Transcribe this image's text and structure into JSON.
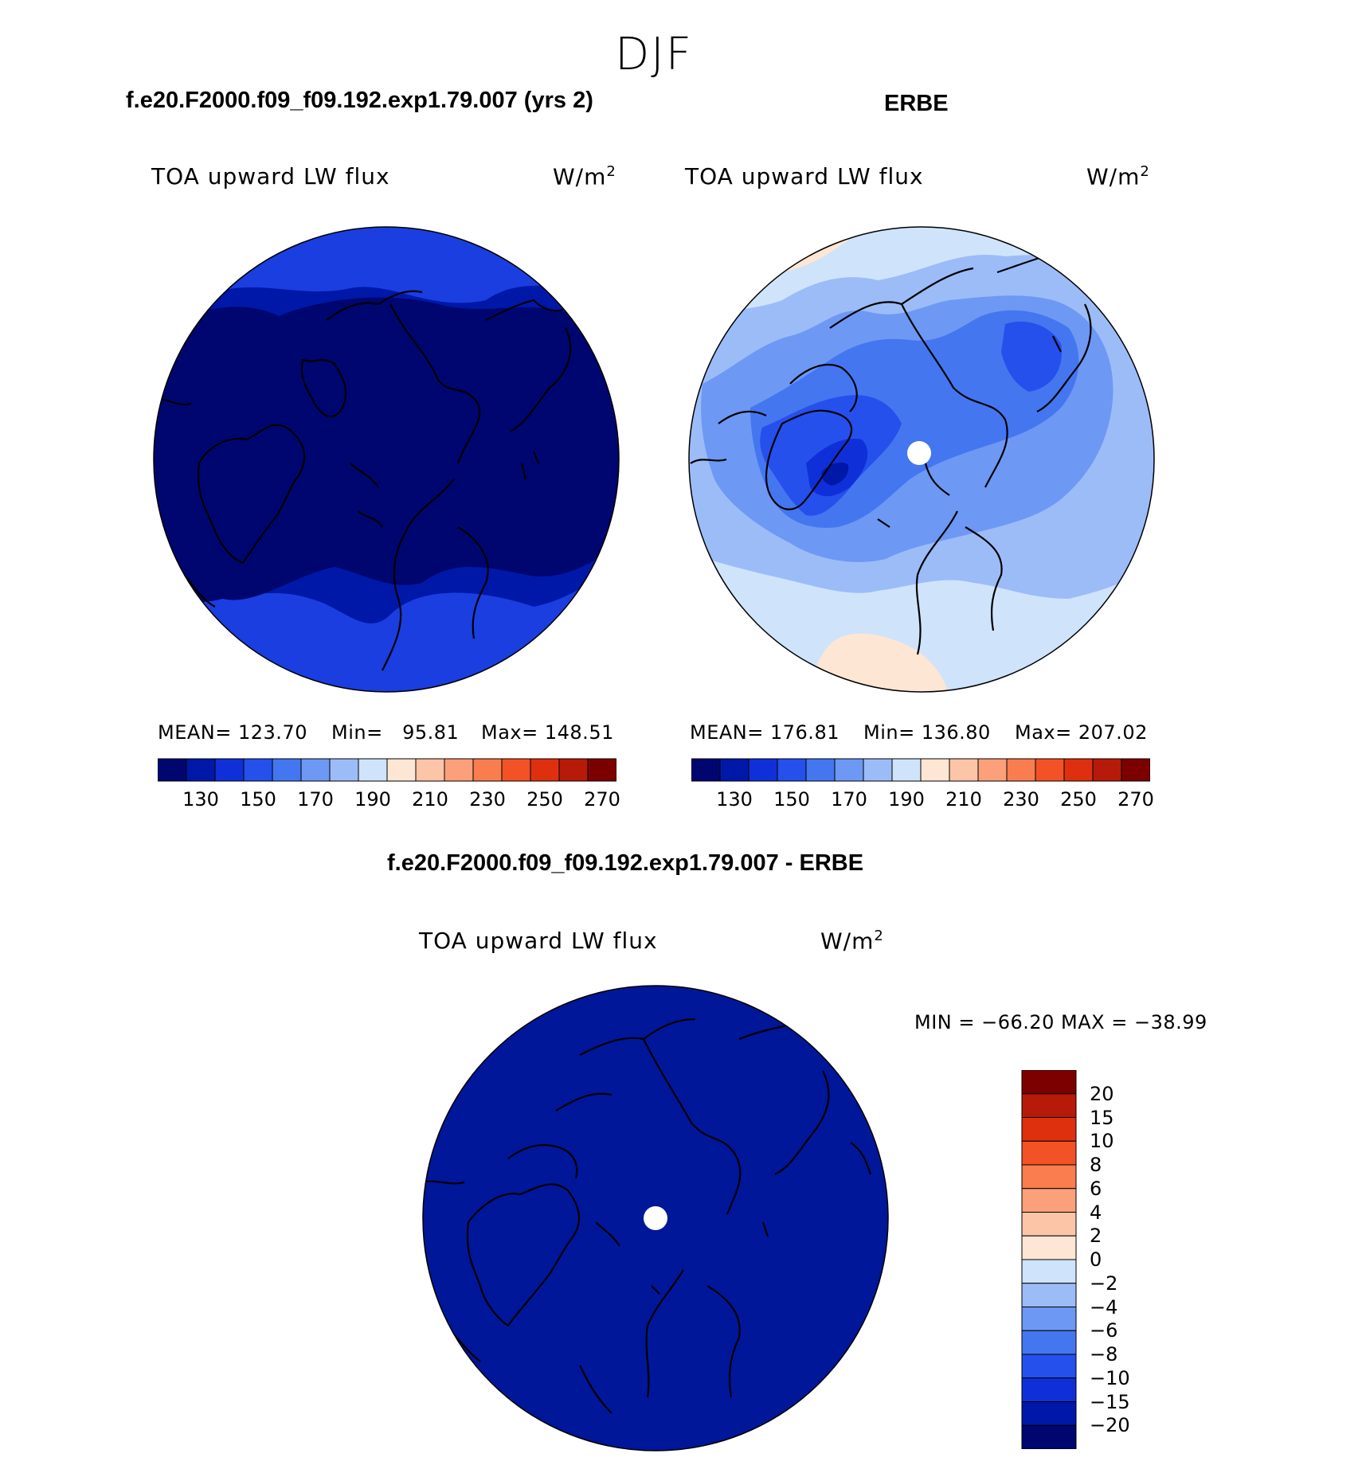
{
  "page": {
    "season": "DJF",
    "color_scale": [
      "#00066f",
      "#0018a8",
      "#0f30d8",
      "#2550ec",
      "#4476f0",
      "#6d98f4",
      "#9cbcf8",
      "#cfe3fb",
      "#fde6d4",
      "#fcc5a8",
      "#fba07a",
      "#f97d4e",
      "#f35226",
      "#de300f",
      "#b71a08",
      "#7d0000"
    ]
  },
  "panels": {
    "model": {
      "case_title": "f.e20.F2000.f09_f09.192.exp1.79.007 (yrs 2)",
      "variable": "TOA upward LW flux",
      "units": "W/m",
      "units_exp": "2",
      "mean_label": "MEAN=",
      "mean_value": "123.70",
      "min_label": "Min=",
      "min_value": "95.81",
      "max_label": "Max=",
      "max_value": "148.51",
      "colorbar_ticks": [
        "130",
        "150",
        "170",
        "190",
        "210",
        "230",
        "250",
        "270"
      ]
    },
    "obs": {
      "case_title": "ERBE",
      "variable": "TOA upward LW flux",
      "units": "W/m",
      "units_exp": "2",
      "mean_label": "MEAN=",
      "mean_value": "176.81",
      "min_label": "Min=",
      "min_value": "136.80",
      "max_label": "Max=",
      "max_value": "207.02",
      "colorbar_ticks": [
        "130",
        "150",
        "170",
        "190",
        "210",
        "230",
        "250",
        "270"
      ]
    },
    "diff": {
      "case_title": "f.e20.F2000.f09_f09.192.exp1.79.007 - ERBE",
      "variable": "TOA upward LW flux",
      "units": "W/m",
      "units_exp": "2",
      "minmax_text": "MIN = −66.20 MAX = −38.99",
      "colorbar_ticks": [
        "20",
        "15",
        "10",
        "8",
        "6",
        "4",
        "2",
        "0",
        "−2",
        "−4",
        "−6",
        "−8",
        "−10",
        "−15",
        "−20"
      ]
    }
  }
}
